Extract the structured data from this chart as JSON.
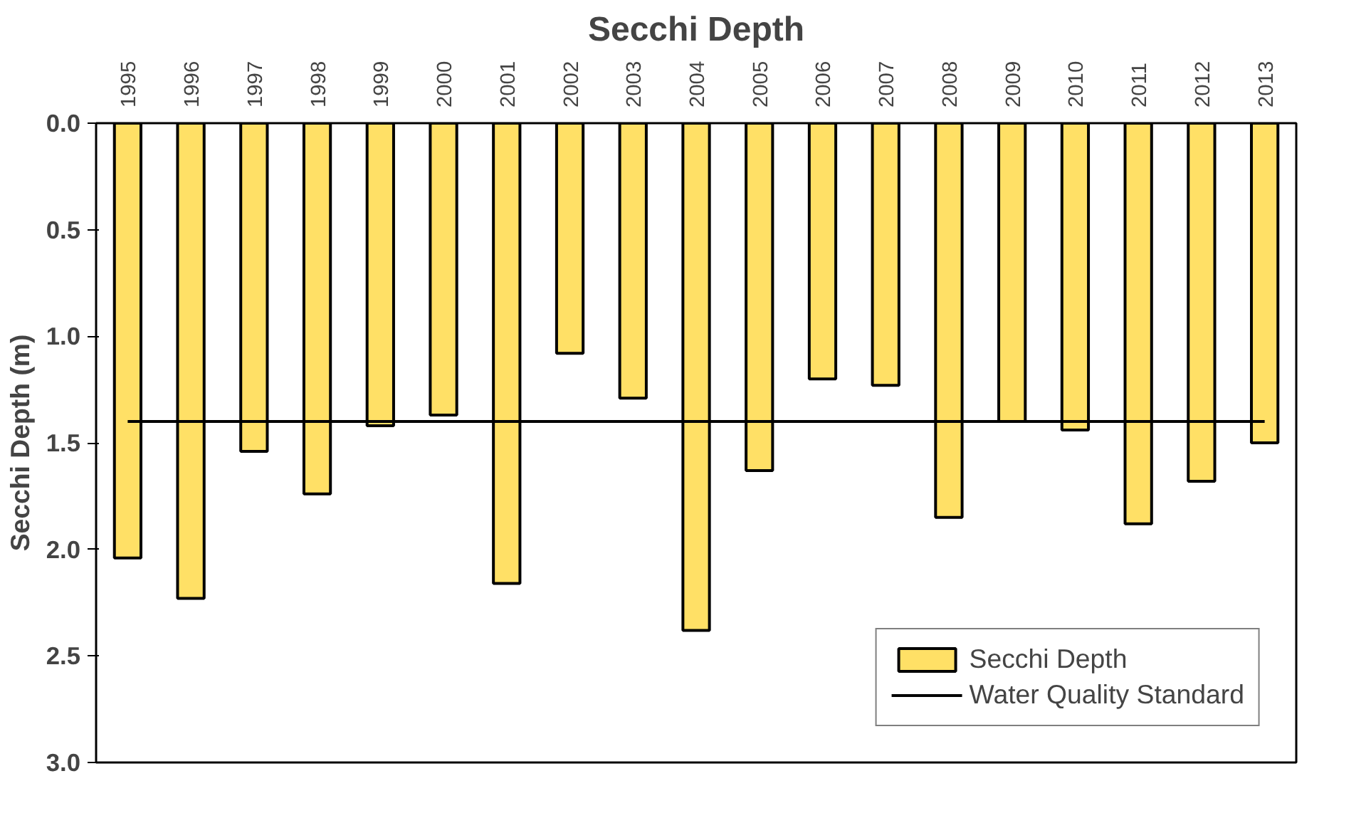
{
  "chart_data": {
    "type": "bar",
    "title": "Secchi Depth",
    "ylabel": "Secchi Depth (m)",
    "categories": [
      "1995",
      "1996",
      "1997",
      "1998",
      "1999",
      "2000",
      "2001",
      "2002",
      "2003",
      "2004",
      "2005",
      "2006",
      "2007",
      "2008",
      "2009",
      "2010",
      "2011",
      "2012",
      "2013"
    ],
    "series": [
      {
        "name": "Secchi Depth",
        "color": "#ffe066",
        "values": [
          2.04,
          2.23,
          1.54,
          1.74,
          1.42,
          1.37,
          2.16,
          1.08,
          1.29,
          2.38,
          1.63,
          1.2,
          1.23,
          1.85,
          1.4,
          1.44,
          1.88,
          1.68,
          1.5
        ]
      }
    ],
    "ref_lines": [
      {
        "axis": "y",
        "value": 1.4,
        "label": "Water Quality Standard",
        "color": "#000000",
        "line_style": "solid"
      }
    ],
    "ylim": [
      3.0,
      0.0
    ],
    "yticks": [
      {
        "value": 0,
        "label": "0.0"
      },
      {
        "value": 0.5,
        "label": "0.5"
      },
      {
        "value": 1,
        "label": "1.0"
      },
      {
        "value": 1.5,
        "label": "1.5"
      },
      {
        "value": 2,
        "label": "2.0"
      },
      {
        "value": 2.5,
        "label": "2.5"
      },
      {
        "value": 3,
        "label": "3.0"
      }
    ],
    "grid": false,
    "legend": "bottom right"
  }
}
